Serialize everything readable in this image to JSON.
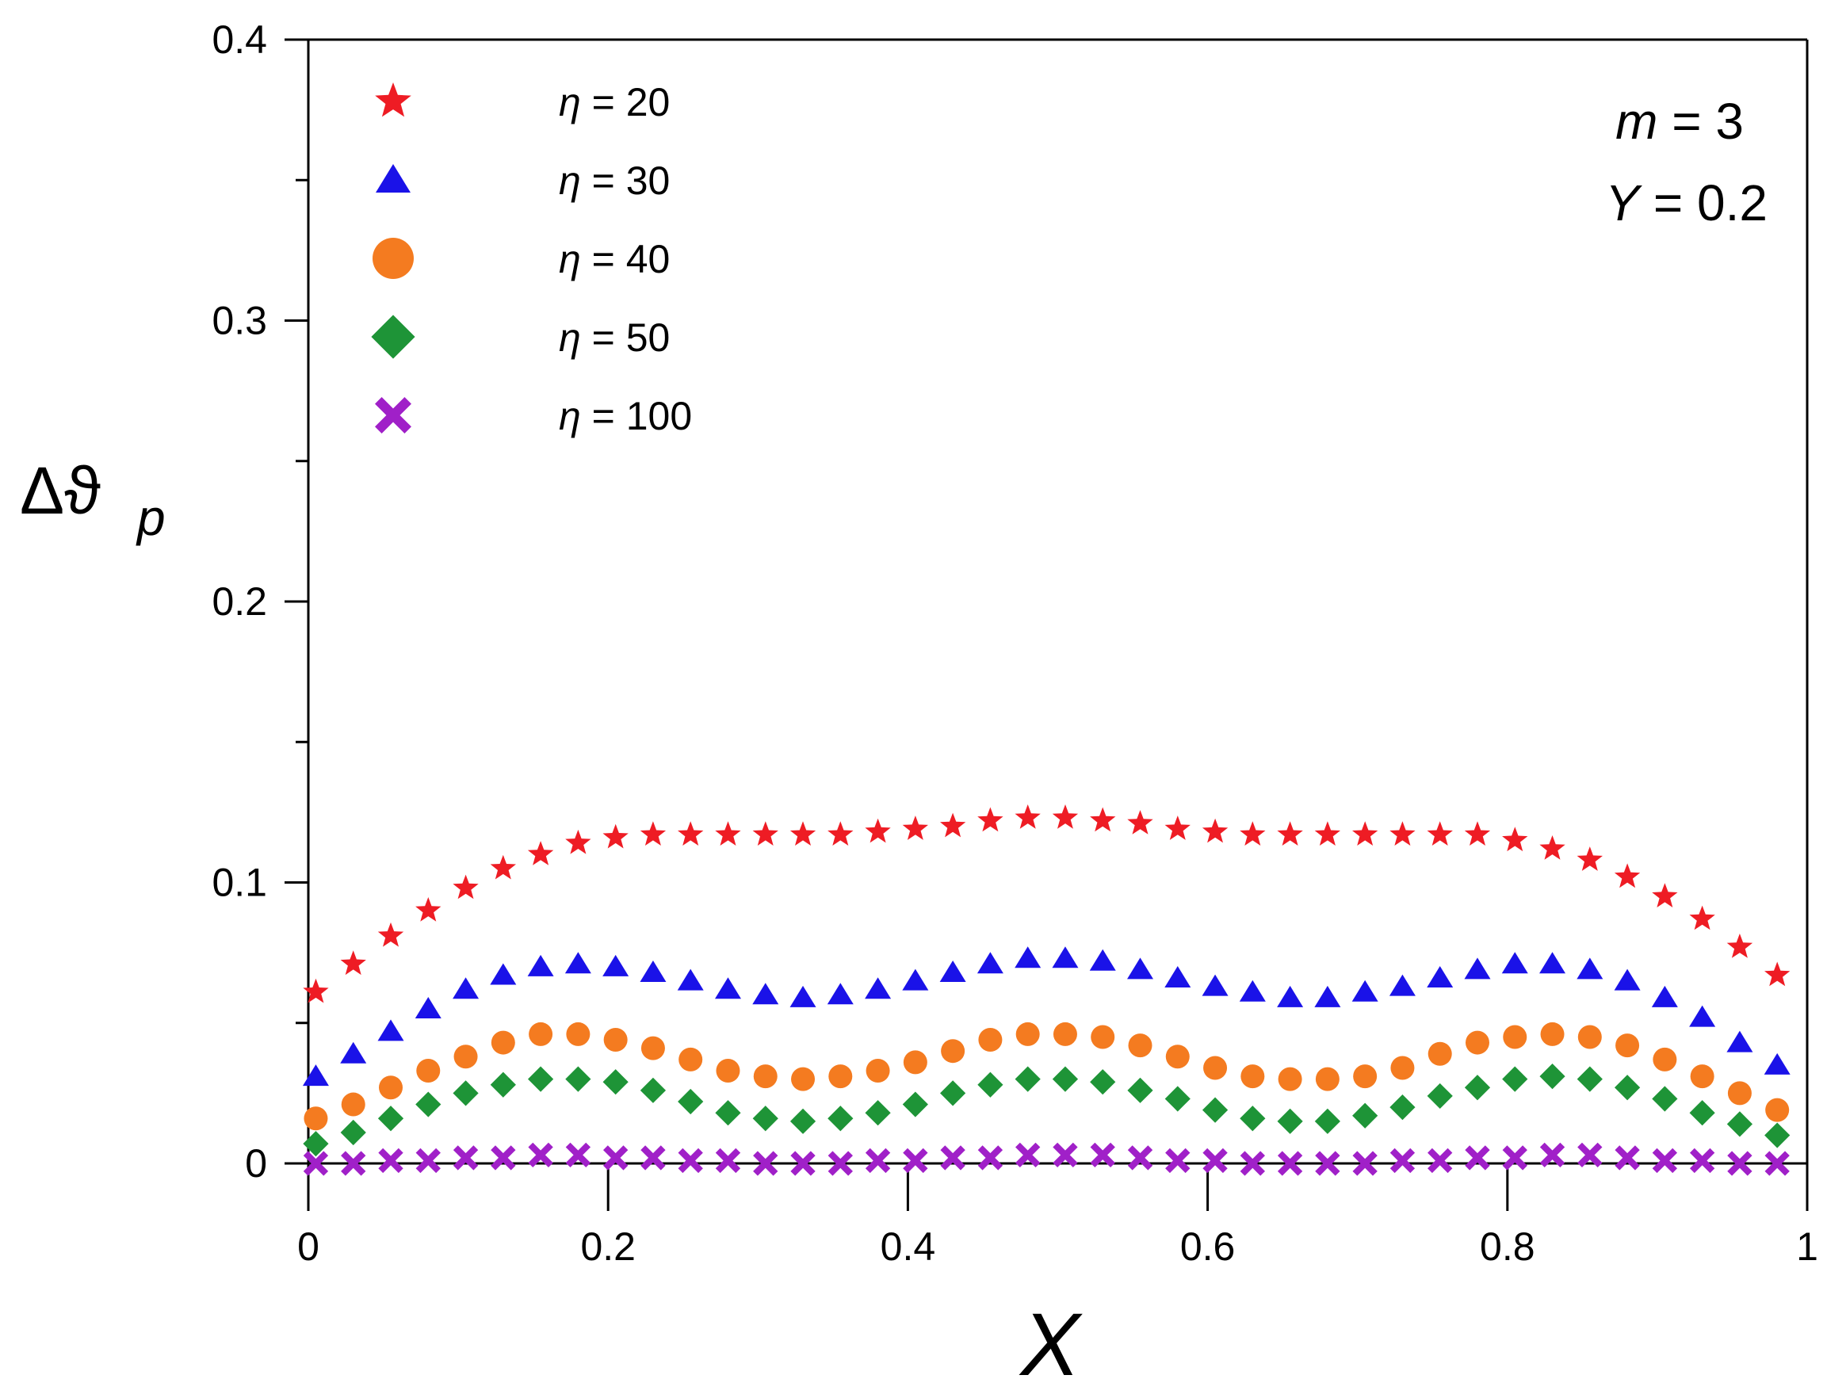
{
  "chart_data": {
    "type": "scatter",
    "title": "",
    "xlabel": "X",
    "ylabel": "Δϑ",
    "ylabel_subscript": "p",
    "xlim": [
      0,
      1
    ],
    "ylim": [
      0,
      0.4
    ],
    "x_ticks": [
      0,
      0.2,
      0.4,
      0.6,
      0.8,
      1
    ],
    "x_tick_labels": [
      "0",
      "0.2",
      "0.4",
      "0.6",
      "0.8",
      "1"
    ],
    "y_ticks": [
      0,
      0.1,
      0.2,
      0.3,
      0.4
    ],
    "y_tick_labels": [
      "0",
      "0.1",
      "0.2",
      "0.3",
      "0.4"
    ],
    "y_minor_ticks": [
      0.05,
      0.15,
      0.25,
      0.35
    ],
    "grid": false,
    "legend_position": "top-left",
    "annotations": [
      "m = 3",
      "Y = 0.2"
    ],
    "x": [
      0.005,
      0.03,
      0.055,
      0.08,
      0.105,
      0.13,
      0.155,
      0.18,
      0.205,
      0.23,
      0.255,
      0.28,
      0.305,
      0.33,
      0.355,
      0.38,
      0.405,
      0.43,
      0.455,
      0.48,
      0.505,
      0.53,
      0.555,
      0.58,
      0.605,
      0.63,
      0.655,
      0.68,
      0.705,
      0.73,
      0.755,
      0.78,
      0.805,
      0.83,
      0.855,
      0.88,
      0.905,
      0.93,
      0.955,
      0.98
    ],
    "series": [
      {
        "name": "η = 20",
        "marker": "star",
        "color": "#ee1c24",
        "values": [
          0.061,
          0.071,
          0.081,
          0.09,
          0.098,
          0.105,
          0.11,
          0.114,
          0.116,
          0.117,
          0.117,
          0.117,
          0.117,
          0.117,
          0.117,
          0.118,
          0.119,
          0.12,
          0.122,
          0.123,
          0.123,
          0.122,
          0.121,
          0.119,
          0.118,
          0.117,
          0.117,
          0.117,
          0.117,
          0.117,
          0.117,
          0.117,
          0.115,
          0.112,
          0.108,
          0.102,
          0.095,
          0.087,
          0.077,
          0.067
        ]
      },
      {
        "name": "η = 30",
        "marker": "triangle",
        "color": "#1a12e8",
        "values": [
          0.031,
          0.039,
          0.047,
          0.055,
          0.062,
          0.067,
          0.07,
          0.071,
          0.07,
          0.068,
          0.065,
          0.062,
          0.06,
          0.059,
          0.06,
          0.062,
          0.065,
          0.068,
          0.071,
          0.073,
          0.073,
          0.072,
          0.069,
          0.066,
          0.063,
          0.061,
          0.059,
          0.059,
          0.061,
          0.063,
          0.066,
          0.069,
          0.071,
          0.071,
          0.069,
          0.065,
          0.059,
          0.052,
          0.043,
          0.035
        ]
      },
      {
        "name": "η = 40",
        "marker": "circle",
        "color": "#f47b20",
        "values": [
          0.016,
          0.021,
          0.027,
          0.033,
          0.038,
          0.043,
          0.046,
          0.046,
          0.044,
          0.041,
          0.037,
          0.033,
          0.031,
          0.03,
          0.031,
          0.033,
          0.036,
          0.04,
          0.044,
          0.046,
          0.046,
          0.045,
          0.042,
          0.038,
          0.034,
          0.031,
          0.03,
          0.03,
          0.031,
          0.034,
          0.039,
          0.043,
          0.045,
          0.046,
          0.045,
          0.042,
          0.037,
          0.031,
          0.025,
          0.019
        ]
      },
      {
        "name": "η = 50",
        "marker": "diamond",
        "color": "#1e9437",
        "values": [
          0.007,
          0.011,
          0.016,
          0.021,
          0.025,
          0.028,
          0.03,
          0.03,
          0.029,
          0.026,
          0.022,
          0.018,
          0.016,
          0.015,
          0.016,
          0.018,
          0.021,
          0.025,
          0.028,
          0.03,
          0.03,
          0.029,
          0.026,
          0.023,
          0.019,
          0.016,
          0.015,
          0.015,
          0.017,
          0.02,
          0.024,
          0.027,
          0.03,
          0.031,
          0.03,
          0.027,
          0.023,
          0.018,
          0.014,
          0.01
        ]
      },
      {
        "name": "η = 100",
        "marker": "cross",
        "color": "#a020c8",
        "values": [
          0.0,
          0.0,
          0.001,
          0.001,
          0.002,
          0.002,
          0.003,
          0.003,
          0.002,
          0.002,
          0.001,
          0.001,
          0.0,
          0.0,
          0.0,
          0.001,
          0.001,
          0.002,
          0.002,
          0.003,
          0.003,
          0.003,
          0.002,
          0.001,
          0.001,
          0.0,
          0.0,
          0.0,
          0.0,
          0.001,
          0.001,
          0.002,
          0.002,
          0.003,
          0.003,
          0.002,
          0.001,
          0.001,
          0.0,
          0.0
        ]
      }
    ]
  }
}
